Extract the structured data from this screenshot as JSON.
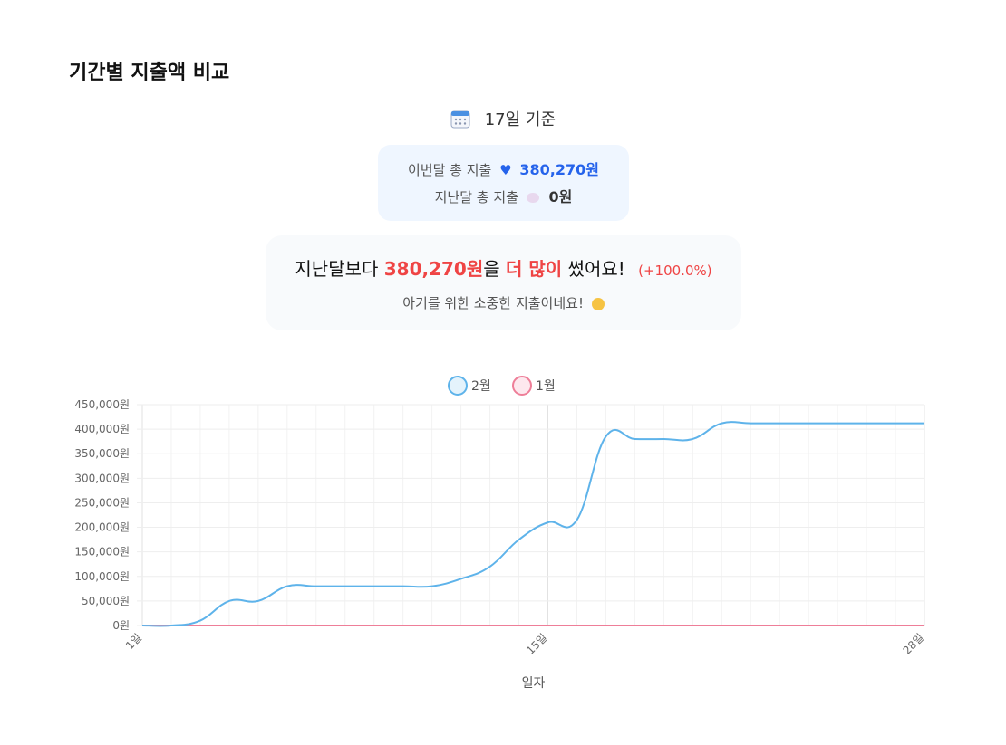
{
  "page_title": "기간별 지출액 비교",
  "basis": {
    "icon": "calendar-icon",
    "text": "17일 기준"
  },
  "totals": {
    "this_month_label": "이번달 총 지출",
    "this_month_icon": "blue-heart-icon",
    "this_month_value": "380,270원",
    "last_month_label": "지난달 총 지출",
    "last_month_icon": "thought-bubble-icon",
    "last_month_value": "0원"
  },
  "comparison": {
    "prefix": "지난달보다",
    "diff": "380,270원",
    "mid": "을",
    "more": "더 많이",
    "suffix": "썼어요!",
    "percent": "(+100.0%)",
    "message": "아기를 위한 소중한 지출이네요!",
    "message_icon": "baby-icon"
  },
  "colors": {
    "this_month": "#5eb3ea",
    "last_month": "#ee7e98",
    "accent_blue": "#2563eb",
    "accent_red": "#ef4444"
  },
  "chart_data": {
    "type": "line",
    "xlabel": "일자",
    "ylabel": "",
    "x_tick_labels": [
      "1일",
      "15일",
      "28일"
    ],
    "x_tick_days": [
      1,
      15,
      28
    ],
    "xlim": [
      1,
      28
    ],
    "ylim": [
      0,
      450000
    ],
    "y_ticks": [
      0,
      50000,
      100000,
      150000,
      200000,
      250000,
      300000,
      350000,
      400000,
      450000
    ],
    "y_tick_labels": [
      "0원",
      "50,000원",
      "100,000원",
      "150,000원",
      "200,000원",
      "250,000원",
      "300,000원",
      "350,000원",
      "400,000원",
      "450,000원"
    ],
    "legend_position": "top-center",
    "grid": true,
    "x": [
      1,
      2,
      3,
      4,
      5,
      6,
      7,
      8,
      9,
      10,
      11,
      12,
      13,
      14,
      15,
      16,
      17,
      18,
      19,
      20,
      21,
      22,
      23,
      24,
      25,
      26,
      27,
      28
    ],
    "series": [
      {
        "name": "2월",
        "values": [
          0,
          0,
          10000,
          50000,
          50000,
          80000,
          80000,
          80000,
          80000,
          80000,
          80000,
          95000,
          120000,
          175000,
          210000,
          215000,
          385000,
          380000,
          380000,
          380000,
          412000,
          412000,
          412000,
          412000,
          412000,
          412000,
          412000,
          412000
        ]
      },
      {
        "name": "1월",
        "values": [
          0,
          0,
          0,
          0,
          0,
          0,
          0,
          0,
          0,
          0,
          0,
          0,
          0,
          0,
          0,
          0,
          0,
          0,
          0,
          0,
          0,
          0,
          0,
          0,
          0,
          0,
          0,
          0
        ]
      }
    ]
  }
}
